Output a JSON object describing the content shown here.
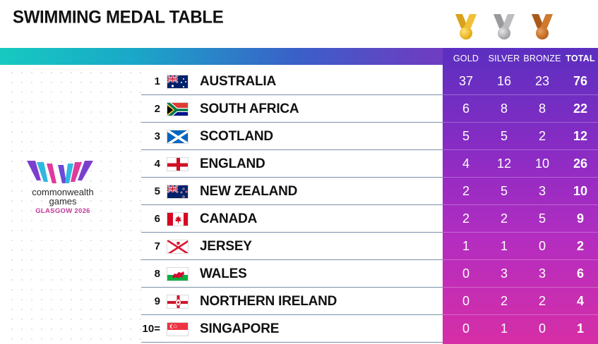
{
  "title": "SWIMMING MEDAL TABLE",
  "colors": {
    "gold": "#e8b21e",
    "silver": "#a9a9ab",
    "bronze": "#c06a22",
    "brand_pink": "#c2389a"
  },
  "columns": {
    "gold": "GOLD",
    "silver": "SILVER",
    "bronze": "BRONZE",
    "total": "TOTAL"
  },
  "logo": {
    "line1": "commonwealth",
    "line2": "games",
    "line3": "GLASGOW 2026"
  },
  "rows": [
    {
      "rank": "1",
      "country": "AUSTRALIA",
      "flag": "australia-flag-icon",
      "gold": "37",
      "silver": "16",
      "bronze": "23",
      "total": "76"
    },
    {
      "rank": "2",
      "country": "SOUTH AFRICA",
      "flag": "south-africa-flag-icon",
      "gold": "6",
      "silver": "8",
      "bronze": "8",
      "total": "22"
    },
    {
      "rank": "3",
      "country": "SCOTLAND",
      "flag": "scotland-flag-icon",
      "gold": "5",
      "silver": "5",
      "bronze": "2",
      "total": "12"
    },
    {
      "rank": "4",
      "country": "ENGLAND",
      "flag": "england-flag-icon",
      "gold": "4",
      "silver": "12",
      "bronze": "10",
      "total": "26"
    },
    {
      "rank": "5",
      "country": "NEW ZEALAND",
      "flag": "new-zealand-flag-icon",
      "gold": "2",
      "silver": "5",
      "bronze": "3",
      "total": "10"
    },
    {
      "rank": "6",
      "country": "CANADA",
      "flag": "canada-flag-icon",
      "gold": "2",
      "silver": "2",
      "bronze": "5",
      "total": "9"
    },
    {
      "rank": "7",
      "country": "JERSEY",
      "flag": "jersey-flag-icon",
      "gold": "1",
      "silver": "1",
      "bronze": "0",
      "total": "2"
    },
    {
      "rank": "8",
      "country": "WALES",
      "flag": "wales-flag-icon",
      "gold": "0",
      "silver": "3",
      "bronze": "3",
      "total": "6"
    },
    {
      "rank": "9",
      "country": "NORTHERN IRELAND",
      "flag": "northern-ireland-flag-icon",
      "gold": "0",
      "silver": "2",
      "bronze": "2",
      "total": "4"
    },
    {
      "rank": "10=",
      "country": "SINGAPORE",
      "flag": "singapore-flag-icon",
      "gold": "0",
      "silver": "1",
      "bronze": "0",
      "total": "1"
    }
  ]
}
